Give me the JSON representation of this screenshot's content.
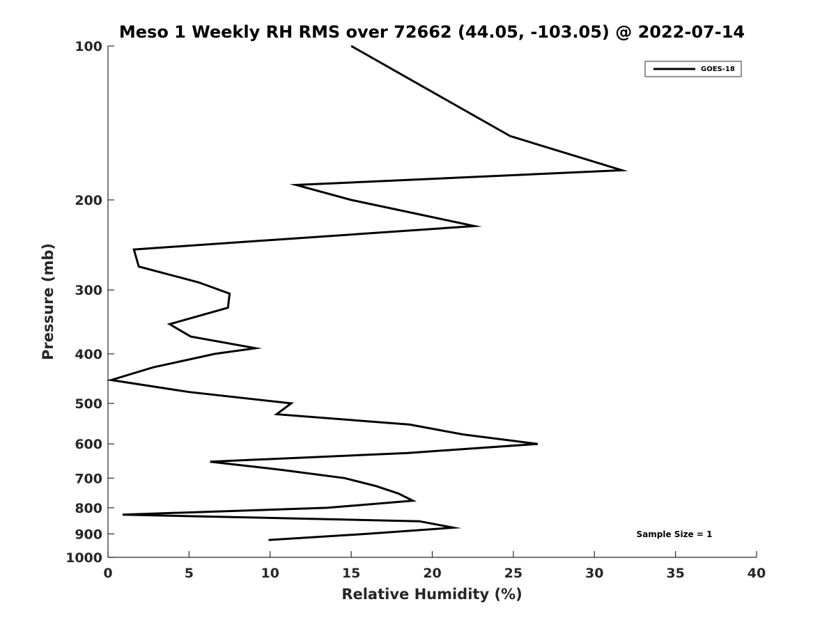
{
  "chart_data": {
    "type": "line",
    "title": "Meso 1 Weekly RH RMS over 72662 (44.05, -103.05) @ 2022-07-14",
    "xlabel": "Relative Humidity (%)",
    "ylabel": "Pressure (mb)",
    "xlim": [
      0,
      40
    ],
    "ylim": [
      1000,
      100
    ],
    "y_scale": "log",
    "y_reversed": true,
    "grid": false,
    "legend_position": "top-right",
    "x_ticks": [
      0,
      5,
      10,
      15,
      20,
      25,
      30,
      35,
      40
    ],
    "x_tick_labels": [
      "0",
      "5",
      "10",
      "15",
      "20",
      "25",
      "30",
      "35",
      "40"
    ],
    "y_ticks": [
      100,
      200,
      300,
      400,
      500,
      600,
      700,
      800,
      900,
      1000
    ],
    "y_tick_labels": [
      "100",
      "200",
      "300",
      "400",
      "500",
      "600",
      "700",
      "800",
      "900",
      "1000"
    ],
    "series": [
      {
        "name": "GOES-18",
        "color": "#000000",
        "points": [
          {
            "rh": 15.0,
            "p": 100
          },
          {
            "rh": 24.8,
            "p": 150
          },
          {
            "rh": 31.7,
            "p": 175
          },
          {
            "rh": 11.6,
            "p": 187
          },
          {
            "rh": 15.0,
            "p": 200
          },
          {
            "rh": 22.6,
            "p": 225
          },
          {
            "rh": 1.6,
            "p": 250
          },
          {
            "rh": 1.9,
            "p": 270
          },
          {
            "rh": 5.6,
            "p": 290
          },
          {
            "rh": 7.5,
            "p": 305
          },
          {
            "rh": 7.4,
            "p": 325
          },
          {
            "rh": 3.8,
            "p": 350
          },
          {
            "rh": 5.1,
            "p": 370
          },
          {
            "rh": 9.1,
            "p": 390
          },
          {
            "rh": 6.6,
            "p": 400
          },
          {
            "rh": 2.8,
            "p": 425
          },
          {
            "rh": 0.2,
            "p": 450
          },
          {
            "rh": 5.0,
            "p": 475
          },
          {
            "rh": 11.3,
            "p": 500
          },
          {
            "rh": 10.4,
            "p": 525
          },
          {
            "rh": 18.6,
            "p": 550
          },
          {
            "rh": 21.9,
            "p": 575
          },
          {
            "rh": 26.5,
            "p": 600
          },
          {
            "rh": 18.5,
            "p": 625
          },
          {
            "rh": 6.3,
            "p": 650
          },
          {
            "rh": 10.8,
            "p": 675
          },
          {
            "rh": 14.6,
            "p": 700
          },
          {
            "rh": 16.5,
            "p": 725
          },
          {
            "rh": 17.9,
            "p": 750
          },
          {
            "rh": 18.8,
            "p": 775
          },
          {
            "rh": 13.5,
            "p": 800
          },
          {
            "rh": 0.9,
            "p": 825
          },
          {
            "rh": 19.2,
            "p": 850
          },
          {
            "rh": 21.3,
            "p": 875
          },
          {
            "rh": 15.9,
            "p": 900
          },
          {
            "rh": 9.9,
            "p": 925
          }
        ]
      }
    ],
    "annotation": "Sample Size = 1"
  }
}
